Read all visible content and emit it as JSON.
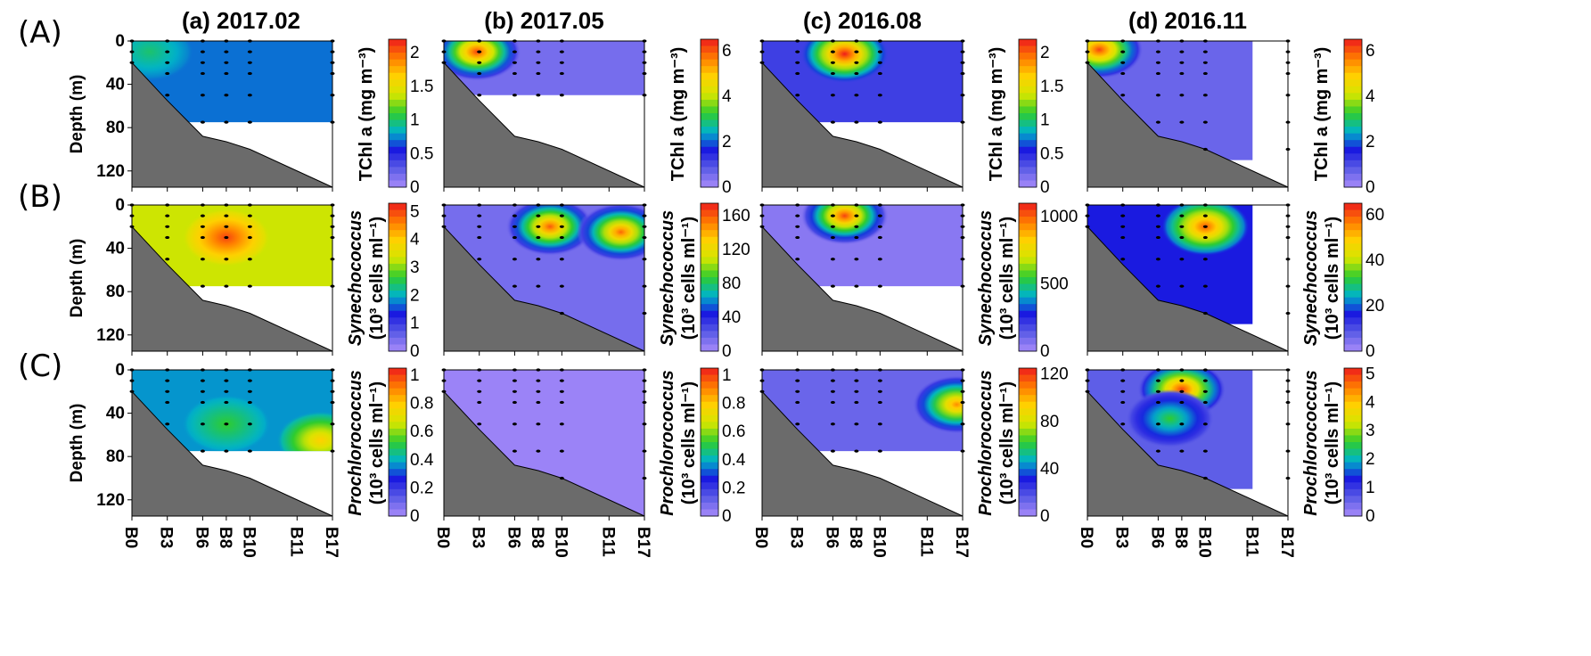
{
  "figure": {
    "row_labels": [
      "(A)",
      "(B)",
      "(C)"
    ],
    "column_titles": [
      "(a) 2017.02",
      "(b) 2017.05",
      "(c) 2016.08",
      "(d) 2016.11"
    ],
    "y_axis_label": "Depth (m)",
    "unit_label": "(10³ cells ml⁻¹)"
  },
  "colors": {
    "seabed": "#6b6b6b",
    "low": "#a78bfa",
    "high": "#ee1c1c",
    "colorbar_stops": [
      "#a78bfa",
      "#5b5ce6",
      "#1a1ae0",
      "#00b4c8",
      "#2ecc2e",
      "#d4e600",
      "#ffd000",
      "#ff7a00",
      "#ee1c1c"
    ]
  },
  "chart_data": {
    "type": "heatmap",
    "x_label": "",
    "x_ticks": [
      "B0",
      "B3",
      "B6",
      "B8",
      "B10",
      "B11",
      "B17"
    ],
    "x_positions": [
      0,
      3,
      6,
      8,
      10,
      14,
      17
    ],
    "ylim": [
      0,
      135
    ],
    "y_ticks": [
      0,
      40,
      80,
      120
    ],
    "y_label": "Depth (m)",
    "seabed": [
      [
        0,
        20
      ],
      [
        3,
        55
      ],
      [
        6,
        88
      ],
      [
        8,
        93
      ],
      [
        10,
        100
      ],
      [
        17,
        135
      ]
    ],
    "rows": [
      {
        "label": "(A)",
        "variable": "TChl a",
        "colorbar_label": "TChl a (mg m⁻³)",
        "panels": [
          {
            "title": "(a) 2017.02",
            "cb_range": [
              0,
              2.2
            ],
            "cb_ticks": [
              "2",
              "1.5",
              "1",
              "0.5",
              "0"
            ],
            "cb_tick_values": [
              2,
              1.5,
              1,
              0.5,
              0
            ],
            "max_depth": 75,
            "station_max": 17,
            "hotspots": [
              {
                "x": 1.5,
                "y": 10,
                "v": 0.45
              }
            ],
            "base": 0.32
          },
          {
            "title": "(b) 2017.05",
            "cb_range": [
              0,
              6.5
            ],
            "cb_ticks": [
              "6",
              "4",
              "2",
              "0"
            ],
            "cb_tick_values": [
              6,
              4,
              2,
              0
            ],
            "max_depth": 50,
            "station_max": 17,
            "hotspots": [
              {
                "x": 2.8,
                "y": 10,
                "v": 0.95
              }
            ],
            "base": 0.08
          },
          {
            "title": "(c) 2016.08",
            "cb_range": [
              0,
              2.2
            ],
            "cb_ticks": [
              "2",
              "1.5",
              "1",
              "0.5",
              "0"
            ],
            "cb_tick_values": [
              2,
              1.5,
              1,
              0.5,
              0
            ],
            "max_depth": 75,
            "station_max": 17,
            "hotspots": [
              {
                "x": 7,
                "y": 12,
                "v": 1.0
              }
            ],
            "base": 0.18
          },
          {
            "title": "(d) 2016.11",
            "cb_range": [
              0,
              6.5
            ],
            "cb_ticks": [
              "6",
              "4",
              "2",
              "0"
            ],
            "cb_tick_values": [
              6,
              4,
              2,
              0
            ],
            "max_depth": 110,
            "station_max": 14,
            "hotspots": [
              {
                "x": 1,
                "y": 8,
                "v": 0.95
              }
            ],
            "base": 0.1
          }
        ]
      },
      {
        "label": "(B)",
        "variable": "Synechococcus",
        "colorbar_label": "Synechococcus",
        "panels": [
          {
            "title": "(a) 2017.02",
            "cb_range": [
              0,
              5.3
            ],
            "cb_ticks": [
              "5",
              "4",
              "3",
              "2",
              "1",
              "0"
            ],
            "cb_tick_values": [
              5,
              4,
              3,
              2,
              1,
              0
            ],
            "max_depth": 75,
            "station_max": 17,
            "hotspots": [
              {
                "x": 8,
                "y": 30,
                "v": 0.95
              }
            ],
            "base": 0.62
          },
          {
            "title": "(b) 2017.05",
            "cb_range": [
              0,
              175
            ],
            "cb_ticks": [
              "160",
              "120",
              "80",
              "40",
              "0"
            ],
            "cb_tick_values": [
              160,
              120,
              80,
              40,
              0
            ],
            "max_depth": 135,
            "station_max": 17,
            "hotspots": [
              {
                "x": 9,
                "y": 20,
                "v": 0.92
              },
              {
                "x": 15,
                "y": 25,
                "v": 0.9
              }
            ],
            "base": 0.08
          },
          {
            "title": "(c) 2016.08",
            "cb_range": [
              0,
              1100
            ],
            "cb_ticks": [
              "1000",
              "500",
              "0"
            ],
            "cb_tick_values": [
              1000,
              500,
              0
            ],
            "max_depth": 75,
            "station_max": 17,
            "hotspots": [
              {
                "x": 7,
                "y": 10,
                "v": 0.95
              }
            ],
            "base": 0.05
          },
          {
            "title": "(d) 2016.11",
            "cb_range": [
              0,
              65
            ],
            "cb_ticks": [
              "60",
              "40",
              "20",
              "0"
            ],
            "cb_tick_values": [
              60,
              40,
              20,
              0
            ],
            "max_depth": 110,
            "station_max": 14,
            "hotspots": [
              {
                "x": 10,
                "y": 20,
                "v": 0.92
              }
            ],
            "base": 0.25
          }
        ]
      },
      {
        "label": "(C)",
        "variable": "Prochlorococcus",
        "colorbar_label": "Prochlorococcus",
        "panels": [
          {
            "title": "(a) 2017.02",
            "cb_range": [
              0,
              1.05
            ],
            "cb_ticks": [
              "1",
              "0.8",
              "0.6",
              "0.4",
              "0.2",
              "0"
            ],
            "cb_tick_values": [
              1,
              0.8,
              0.6,
              0.4,
              0.2,
              0
            ],
            "max_depth": 75,
            "station_max": 17,
            "hotspots": [
              {
                "x": 16,
                "y": 65,
                "v": 0.75
              },
              {
                "x": 8,
                "y": 50,
                "v": 0.5
              }
            ],
            "base": 0.35
          },
          {
            "title": "(b) 2017.05",
            "cb_range": [
              0,
              1.05
            ],
            "cb_ticks": [
              "1",
              "0.8",
              "0.6",
              "0.4",
              "0.2",
              "0"
            ],
            "cb_tick_values": [
              1,
              0.8,
              0.6,
              0.4,
              0.2,
              0
            ],
            "max_depth": 135,
            "station_max": 17,
            "hotspots": [],
            "base": 0.02
          },
          {
            "title": "(c) 2016.08",
            "cb_range": [
              0,
              125
            ],
            "cb_ticks": [
              "120",
              "80",
              "40",
              "0"
            ],
            "cb_tick_values": [
              120,
              80,
              40,
              0
            ],
            "max_depth": 75,
            "station_max": 17,
            "hotspots": [
              {
                "x": 16.5,
                "y": 32,
                "v": 0.85
              }
            ],
            "base": 0.1
          },
          {
            "title": "(d) 2016.11",
            "cb_range": [
              0,
              5.2
            ],
            "cb_ticks": [
              "5",
              "4",
              "3",
              "2",
              "1",
              "0"
            ],
            "cb_tick_values": [
              5,
              4,
              3,
              2,
              1,
              0
            ],
            "max_depth": 110,
            "station_max": 14,
            "hotspots": [
              {
                "x": 8,
                "y": 18,
                "v": 0.95
              },
              {
                "x": 7,
                "y": 45,
                "v": 0.5
              }
            ],
            "base": 0.12
          }
        ]
      }
    ],
    "sample_depths": [
      0,
      10,
      20,
      30,
      50,
      75,
      100
    ],
    "stations_sampled": [
      0,
      3,
      6,
      8,
      10,
      17
    ]
  }
}
